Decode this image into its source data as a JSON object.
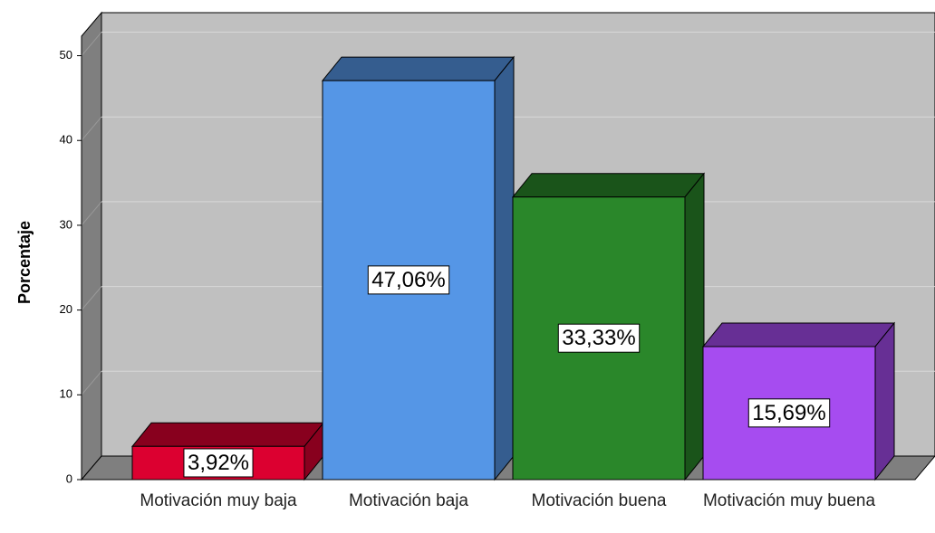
{
  "chart_data": {
    "type": "bar3d",
    "y_label": "Porcentaje",
    "categories": [
      "Motivación muy baja",
      "Motivación baja",
      "Motivación buena",
      "Motivación muy buena"
    ],
    "values": [
      3.92,
      47.06,
      33.33,
      15.69
    ],
    "value_labels": [
      "3,92%",
      "47,06%",
      "33,33%",
      "15,69%"
    ],
    "colors": [
      "#dc0030",
      "#5596e6",
      "#2a872a",
      "#a64cf0"
    ],
    "ylim": [
      0,
      52.3
    ],
    "yticks": [
      0,
      10,
      20,
      30,
      40,
      50
    ],
    "grid": true
  }
}
